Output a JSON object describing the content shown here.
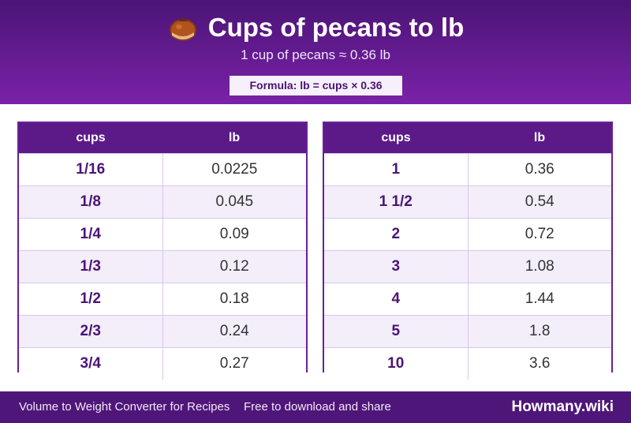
{
  "header": {
    "icon": "chestnut-icon",
    "title": "Cups of pecans to lb",
    "subtitle": "1 cup of pecans ≈ 0.36 lb",
    "formula": "Formula: lb = cups × 0.36"
  },
  "tables": [
    {
      "headers": [
        "cups",
        "lb"
      ],
      "rows": [
        [
          "1/16",
          "0.0225"
        ],
        [
          "1/8",
          "0.045"
        ],
        [
          "1/4",
          "0.09"
        ],
        [
          "1/3",
          "0.12"
        ],
        [
          "1/2",
          "0.18"
        ],
        [
          "2/3",
          "0.24"
        ],
        [
          "3/4",
          "0.27"
        ]
      ]
    },
    {
      "headers": [
        "cups",
        "lb"
      ],
      "rows": [
        [
          "1",
          "0.36"
        ],
        [
          "1 1/2",
          "0.54"
        ],
        [
          "2",
          "0.72"
        ],
        [
          "3",
          "1.08"
        ],
        [
          "4",
          "1.44"
        ],
        [
          "5",
          "1.8"
        ],
        [
          "10",
          "3.6"
        ]
      ]
    }
  ],
  "footer": {
    "left": "Volume to Weight Converter for Recipes",
    "middle": "Free to download and share",
    "brand": "Howmany.wiki"
  },
  "colors": {
    "header_top": "#4b1476",
    "header_bottom": "#7a22a8",
    "table_header": "#5c1a89",
    "alt_row": "#f3eefa",
    "footer": "#4f1679"
  }
}
